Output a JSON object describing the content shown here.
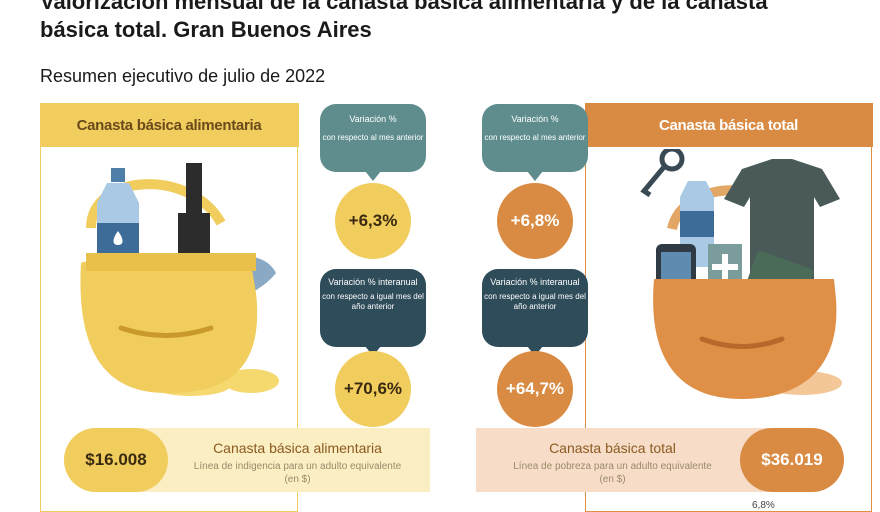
{
  "title": "Valorización mensual de la canasta básica alimentaria y de la canasta básica total. Gran Buenos Aires",
  "subtitle": "Resumen ejecutivo de julio de 2022",
  "left": {
    "header": "Canasta básica alimentaria",
    "price": "$16.008",
    "band_title": "Canasta básica alimentaria",
    "band_desc": "Línea de indigencia para un adulto equivalente (en $)"
  },
  "right": {
    "header": "Canasta básica total",
    "price": "$36.019",
    "band_title": "Canasta básica total",
    "band_desc": "Línea de pobreza para un adulto equivalente (en $)"
  },
  "monthly": {
    "label": "Variación %",
    "sub": "con respecto al mes anterior",
    "cba": "+6,3%",
    "cbt": "+6,8%"
  },
  "annual": {
    "label": "Variación % interanual",
    "sub": "con respecto a igual mes del año anterior",
    "cba": "+70,6%",
    "cbt": "+64,7%"
  },
  "footnote": "6,8%",
  "colors": {
    "yellow": "#f1cd5d",
    "orange": "#d98b43",
    "teal": "#5f8d8e",
    "dark_teal": "#2f4c5a"
  },
  "icons": [
    "basket-food-illustration",
    "basket-total-illustration",
    "water-bottle-icon",
    "wine-bottle-icon",
    "fish-icon",
    "keys-icon",
    "tshirt-icon",
    "phone-icon",
    "medicine-icon",
    "sube-card-icon"
  ]
}
